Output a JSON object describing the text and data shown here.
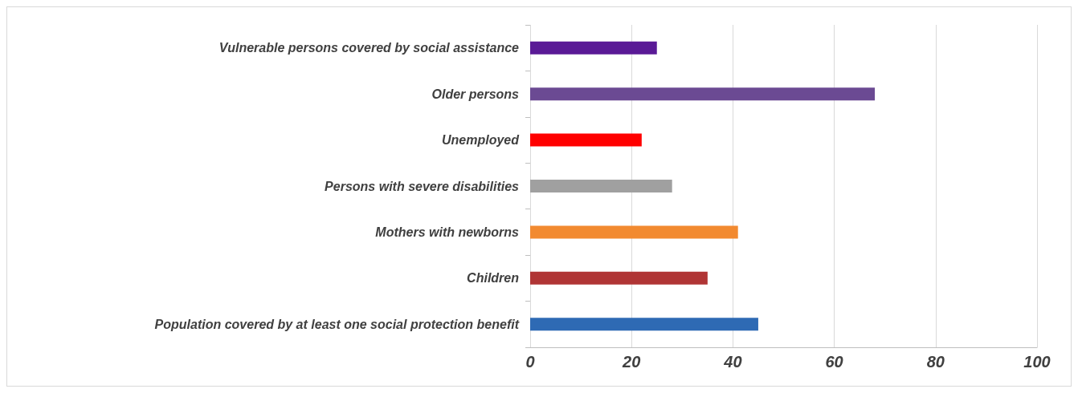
{
  "chart_data": {
    "type": "bar",
    "orientation": "horizontal",
    "categories": [
      "Vulnerable persons covered by social assistance",
      "Older persons",
      "Unemployed",
      "Persons with severe disabilities",
      "Mothers with newborns",
      "Children",
      "Population covered by at least one social protection benefit"
    ],
    "values": [
      25,
      68,
      22,
      28,
      41,
      35,
      45
    ],
    "colors": [
      "#5a1a96",
      "#6b4a93",
      "#ff0000",
      "#a0a0a0",
      "#f28a30",
      "#b03535",
      "#2e6ab4"
    ],
    "xlim": [
      0,
      100
    ],
    "xticks": [
      0,
      20,
      40,
      60,
      80,
      100
    ],
    "grid": "x"
  }
}
